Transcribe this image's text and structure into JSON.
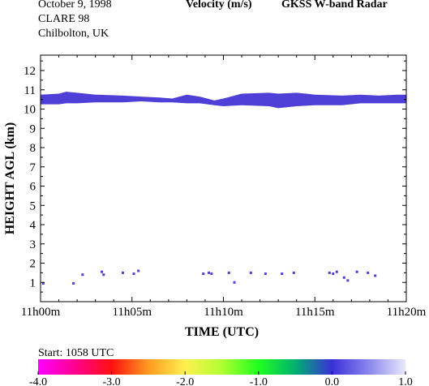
{
  "header": {
    "date": "October   9, 1998",
    "campaign": "CLARE 98",
    "location": "Chilbolton, UK",
    "variable": "Velocity (m/s)",
    "instrument": "GKSS  W-band Radar"
  },
  "chart_data": {
    "type": "heatmap",
    "xlabel": "TIME (UTC)",
    "ylabel": "HEIGHT AGL (km)",
    "xlim_minutes": [
      0,
      20
    ],
    "ylim": [
      0,
      12.8
    ],
    "x_ticks": [
      {
        "value": 0,
        "label": "11h00m"
      },
      {
        "value": 5,
        "label": "11h05m"
      },
      {
        "value": 10,
        "label": "11h10m"
      },
      {
        "value": 15,
        "label": "11h15m"
      },
      {
        "value": 20,
        "label": "11h20m"
      }
    ],
    "y_ticks": [
      1,
      2,
      3,
      4,
      5,
      6,
      7,
      8,
      9,
      10,
      11,
      12
    ],
    "cloud_layer": {
      "color": "#4e3fd6",
      "profile": [
        {
          "t": 0.0,
          "bottom": 10.25,
          "top": 10.75
        },
        {
          "t": 1.0,
          "bottom": 10.25,
          "top": 10.8
        },
        {
          "t": 1.4,
          "bottom": 10.3,
          "top": 10.9
        },
        {
          "t": 2.0,
          "bottom": 10.3,
          "top": 10.85
        },
        {
          "t": 3.0,
          "bottom": 10.35,
          "top": 10.75
        },
        {
          "t": 4.5,
          "bottom": 10.35,
          "top": 10.7
        },
        {
          "t": 5.5,
          "bottom": 10.4,
          "top": 10.65
        },
        {
          "t": 6.5,
          "bottom": 10.35,
          "top": 10.6
        },
        {
          "t": 7.2,
          "bottom": 10.35,
          "top": 10.55
        },
        {
          "t": 8.0,
          "bottom": 10.3,
          "top": 10.75
        },
        {
          "t": 8.7,
          "bottom": 10.3,
          "top": 10.65
        },
        {
          "t": 9.5,
          "bottom": 10.2,
          "top": 10.45
        },
        {
          "t": 10.0,
          "bottom": 10.15,
          "top": 10.55
        },
        {
          "t": 11.0,
          "bottom": 10.2,
          "top": 10.8
        },
        {
          "t": 12.5,
          "bottom": 10.15,
          "top": 10.85
        },
        {
          "t": 13.0,
          "bottom": 10.05,
          "top": 10.8
        },
        {
          "t": 14.0,
          "bottom": 10.15,
          "top": 10.85
        },
        {
          "t": 15.0,
          "bottom": 10.2,
          "top": 10.75
        },
        {
          "t": 16.5,
          "bottom": 10.2,
          "top": 10.7
        },
        {
          "t": 17.5,
          "bottom": 10.3,
          "top": 10.75
        },
        {
          "t": 18.5,
          "bottom": 10.3,
          "top": 10.7
        },
        {
          "t": 19.5,
          "bottom": 10.3,
          "top": 10.75
        },
        {
          "t": 20.0,
          "bottom": 10.3,
          "top": 10.75
        }
      ]
    },
    "echoes": [
      {
        "t": 0.15,
        "h": 0.95
      },
      {
        "t": 1.8,
        "h": 0.95
      },
      {
        "t": 2.3,
        "h": 1.4
      },
      {
        "t": 3.35,
        "h": 1.55
      },
      {
        "t": 3.45,
        "h": 1.4
      },
      {
        "t": 4.5,
        "h": 1.5
      },
      {
        "t": 5.1,
        "h": 1.45
      },
      {
        "t": 5.35,
        "h": 1.6
      },
      {
        "t": 8.9,
        "h": 1.45
      },
      {
        "t": 9.2,
        "h": 1.5
      },
      {
        "t": 9.35,
        "h": 1.45
      },
      {
        "t": 10.3,
        "h": 1.5
      },
      {
        "t": 10.6,
        "h": 1.0
      },
      {
        "t": 11.5,
        "h": 1.5
      },
      {
        "t": 12.3,
        "h": 1.45
      },
      {
        "t": 13.2,
        "h": 1.45
      },
      {
        "t": 13.85,
        "h": 1.5
      },
      {
        "t": 15.8,
        "h": 1.5
      },
      {
        "t": 16.0,
        "h": 1.45
      },
      {
        "t": 16.2,
        "h": 1.55
      },
      {
        "t": 16.6,
        "h": 1.25
      },
      {
        "t": 16.8,
        "h": 1.1
      },
      {
        "t": 17.3,
        "h": 1.55
      },
      {
        "t": 17.9,
        "h": 1.5
      },
      {
        "t": 18.3,
        "h": 1.35
      }
    ],
    "colorbar": {
      "start_label": "Start: 1058 UTC",
      "ticks": [
        {
          "value": -4.0,
          "label": "-4.0"
        },
        {
          "value": -3.0,
          "label": "-3.0"
        },
        {
          "value": -2.0,
          "label": "-2.0"
        },
        {
          "value": -1.0,
          "label": "-1.0"
        },
        {
          "value": 0.0,
          "label": "0.0"
        },
        {
          "value": 1.0,
          "label": "1.0"
        }
      ],
      "range": [
        -4.0,
        1.0
      ],
      "stops": [
        {
          "value": -4.0,
          "color": "#ff00ff"
        },
        {
          "value": -3.5,
          "color": "#ff0090"
        },
        {
          "value": -3.0,
          "color": "#ff1010"
        },
        {
          "value": -2.5,
          "color": "#ff9a20"
        },
        {
          "value": -2.0,
          "color": "#fff050"
        },
        {
          "value": -1.5,
          "color": "#b0ff30"
        },
        {
          "value": -1.0,
          "color": "#20ff20"
        },
        {
          "value": -0.5,
          "color": "#00b070"
        },
        {
          "value": 0.0,
          "color": "#3a30d8"
        },
        {
          "value": 0.5,
          "color": "#8a86ee"
        },
        {
          "value": 1.0,
          "color": "#e8e8fc"
        }
      ]
    }
  }
}
